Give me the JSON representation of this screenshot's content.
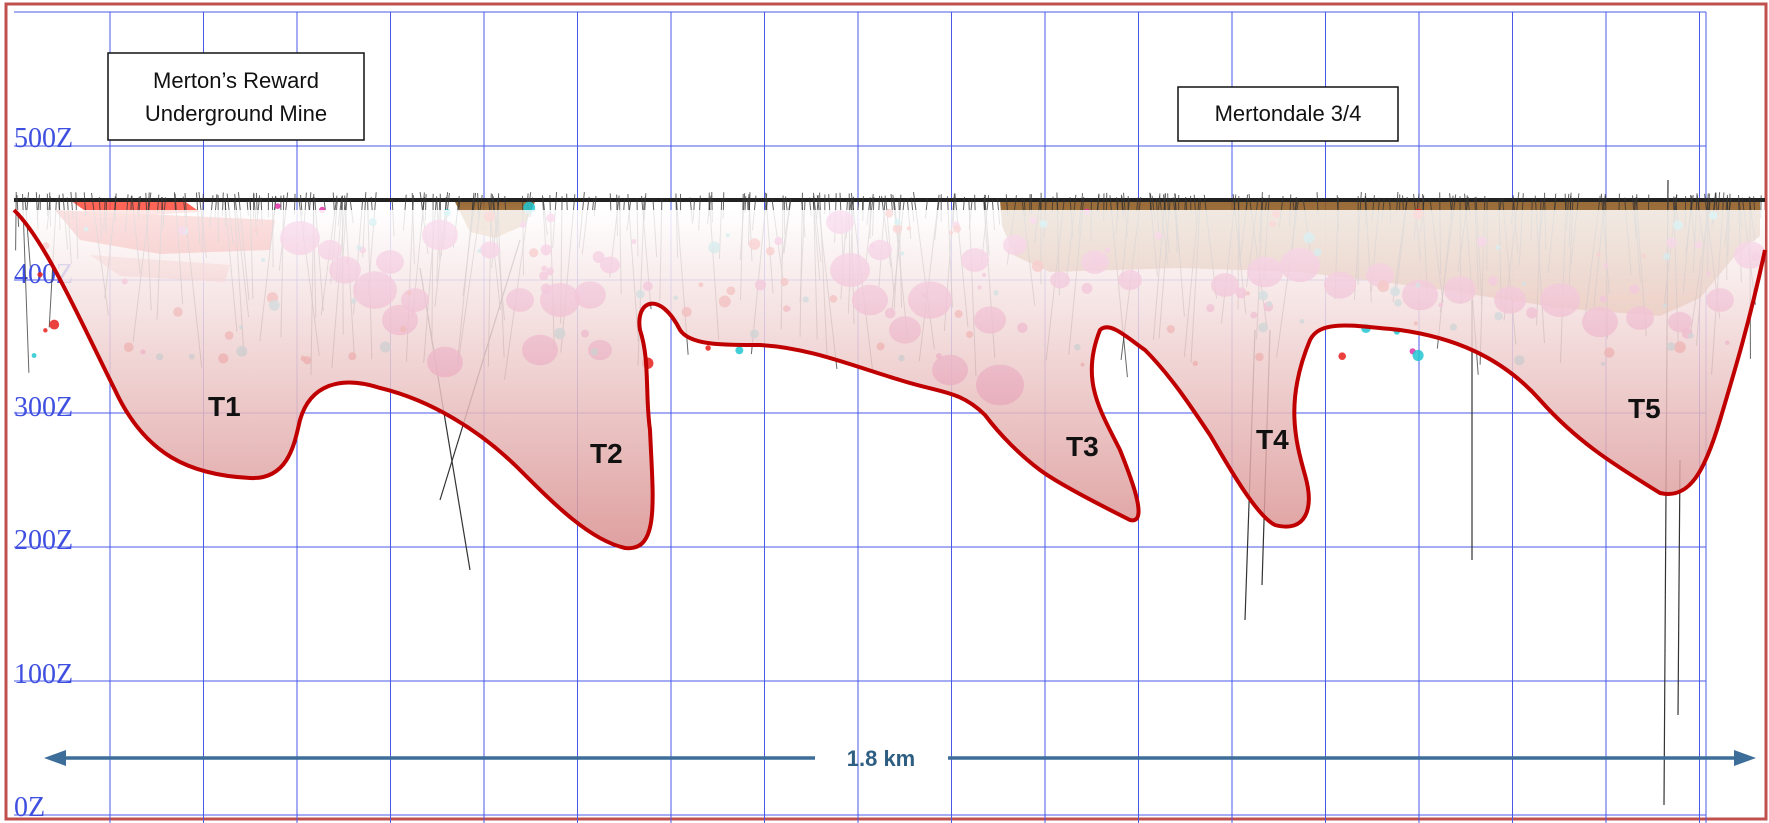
{
  "section": {
    "rl_labels": [
      "500Z",
      "400Z",
      "300Z",
      "200Z",
      "100Z",
      "0Z"
    ],
    "callouts": [
      {
        "lines": [
          "Merton’s Reward",
          "Underground Mine"
        ]
      },
      {
        "lines": [
          "Mertondale 3/4"
        ]
      }
    ],
    "targets": [
      "T1",
      "T2",
      "T3",
      "T4",
      "T5"
    ],
    "scale_bar": {
      "label": "1.8 km"
    }
  },
  "colors": {
    "grid": "#4a58e8",
    "frame": "#c0504d",
    "target_outline": "#c00000",
    "target_fill": "#e9b3b3",
    "pit": "#b07a3c",
    "intercepts": "#e033a6",
    "workings": "#e8201c",
    "scale_bar": "#3d6d99"
  }
}
